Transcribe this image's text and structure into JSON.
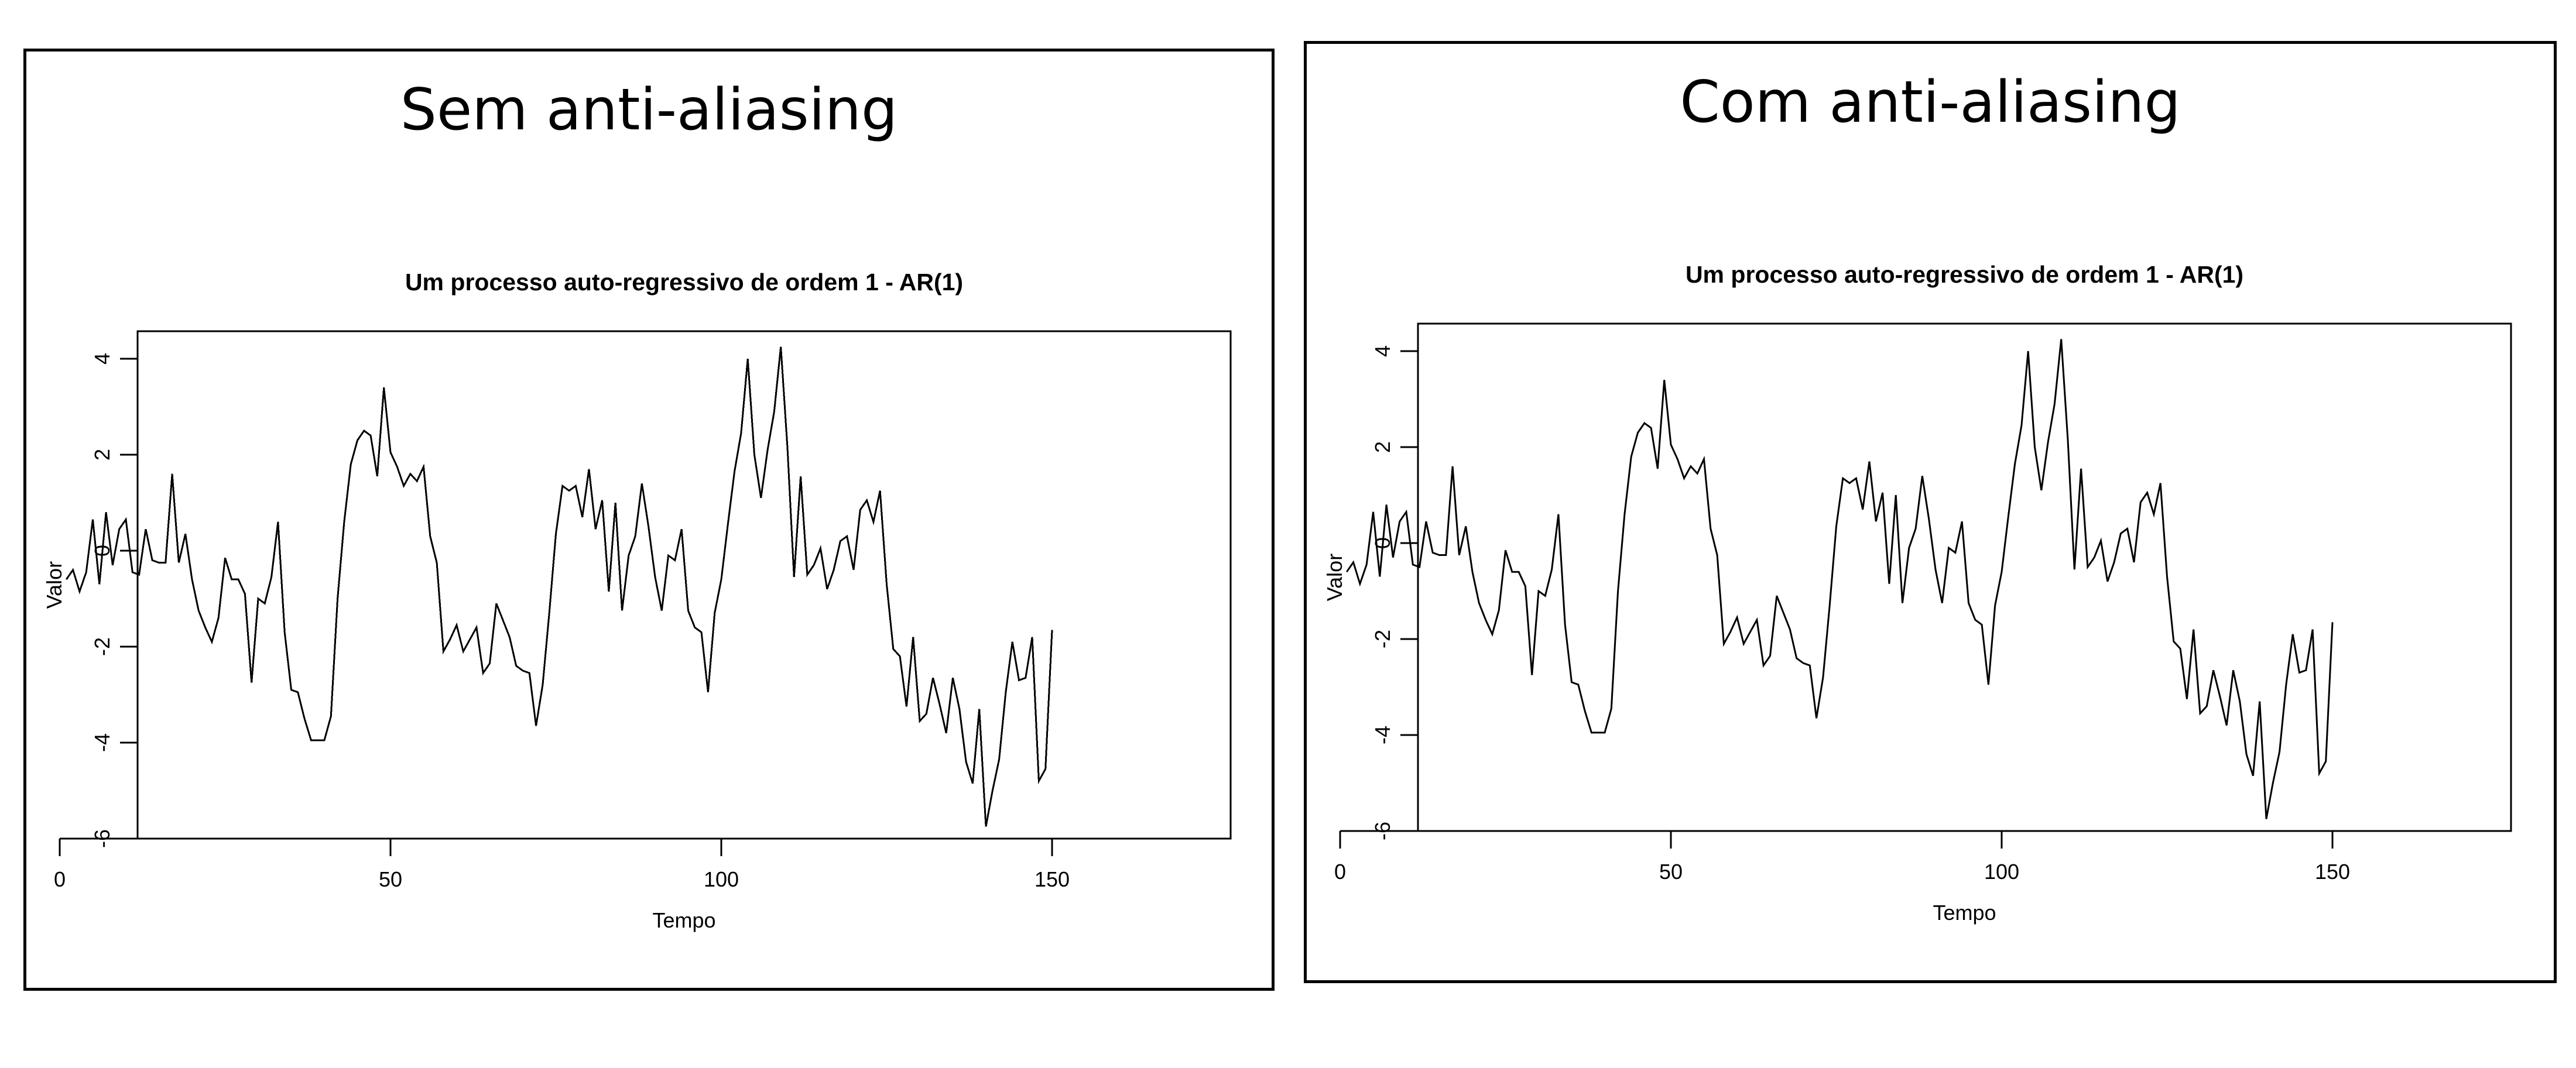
{
  "panels": [
    {
      "title": "Sem anti-aliasing"
    },
    {
      "title": "Com anti-aliasing"
    }
  ],
  "chart_data": [
    {
      "type": "line",
      "title": "Um processo auto-regressivo de ordem 1 - AR(1)",
      "xlabel": "Tempo",
      "ylabel": "Valor",
      "xlim": [
        0,
        150
      ],
      "ylim": [
        -6,
        4.6
      ],
      "xticks": [
        0,
        50,
        100,
        150
      ],
      "yticks": [
        -6,
        -4,
        -2,
        0,
        2,
        4
      ],
      "grid": false,
      "anti_aliasing": false,
      "series": [
        {
          "x": [
            1,
            2,
            3,
            4,
            5,
            6,
            7,
            8,
            9,
            10,
            11,
            12,
            13,
            14,
            15,
            16,
            17,
            18,
            19,
            20,
            21,
            22,
            23,
            24,
            25,
            26,
            27,
            28,
            29,
            30,
            31,
            32,
            33,
            34,
            35,
            36,
            37,
            38,
            39,
            40,
            41,
            42,
            43,
            44,
            45,
            46,
            47,
            48,
            49,
            50,
            51,
            52,
            53,
            54,
            55,
            56,
            57,
            58,
            59,
            60,
            61,
            62,
            63,
            64,
            65,
            66,
            67,
            68,
            69,
            70,
            71,
            72,
            73,
            74,
            75,
            76,
            77,
            78,
            79,
            80,
            81,
            82,
            83,
            84,
            85,
            86,
            87,
            88,
            89,
            90,
            91,
            92,
            93,
            94,
            95,
            96,
            97,
            98,
            99,
            100,
            101,
            102,
            103,
            104,
            105,
            106,
            107,
            108,
            109,
            110,
            111,
            112,
            113,
            114,
            115,
            116,
            117,
            118,
            119,
            120,
            121,
            122,
            123,
            124,
            125,
            126,
            127,
            128,
            129,
            130,
            131,
            132,
            133,
            134,
            135,
            136,
            137,
            138,
            139,
            140,
            141,
            142,
            143,
            144,
            145,
            146,
            147,
            148,
            149,
            150
          ],
          "y": [
            -0.6,
            -0.4,
            -0.85,
            -0.45,
            0.65,
            -0.7,
            0.8,
            -0.3,
            0.45,
            0.65,
            -0.45,
            -0.5,
            0.45,
            -0.2,
            -0.25,
            -0.25,
            1.6,
            -0.25,
            0.35,
            -0.6,
            -1.25,
            -1.6,
            -1.9,
            -1.4,
            -0.15,
            -0.6,
            -0.6,
            -0.9,
            -2.75,
            -1.0,
            -1.1,
            -0.55,
            0.6,
            -1.7,
            -2.9,
            -2.95,
            -3.5,
            -3.95,
            -3.95,
            -3.95,
            -3.45,
            -1.0,
            0.6,
            1.8,
            2.3,
            2.5,
            2.4,
            1.55,
            3.4,
            2.05,
            1.75,
            1.35,
            1.6,
            1.45,
            1.75,
            0.3,
            -0.25,
            -2.1,
            -1.85,
            -1.55,
            -2.1,
            -1.85,
            -1.6,
            -2.55,
            -2.35,
            -1.1,
            -1.45,
            -1.8,
            -2.4,
            -2.5,
            -2.55,
            -3.65,
            -2.8,
            -1.3,
            0.35,
            1.35,
            1.25,
            1.35,
            0.7,
            1.7,
            0.45,
            1.05,
            -0.85,
            1.0,
            -1.25,
            -0.1,
            0.3,
            1.4,
            0.5,
            -0.55,
            -1.25,
            -0.1,
            -0.2,
            0.45,
            -1.25,
            -1.6,
            -1.7,
            -2.95,
            -1.3,
            -0.6,
            0.55,
            1.65,
            2.45,
            4.0,
            2.0,
            1.1,
            2.1,
            2.9,
            4.25,
            2.15,
            -0.55,
            1.55,
            -0.5,
            -0.3,
            0.05,
            -0.8,
            -0.4,
            0.2,
            0.3,
            -0.4,
            0.85,
            1.05,
            0.6,
            1.25,
            -0.7,
            -2.05,
            -2.2,
            -3.25,
            -1.8,
            -3.55,
            -3.4,
            -2.65,
            -3.2,
            -3.8,
            -2.65,
            -3.3,
            -4.4,
            -4.85,
            -3.3,
            -5.75,
            -5.0,
            -4.35,
            -2.95,
            -1.9,
            -2.7,
            -2.65,
            -1.8,
            -4.8,
            -4.55,
            -1.65
          ]
        }
      ]
    },
    {
      "type": "line",
      "title": "Um processo auto-regressivo de ordem 1 - AR(1)",
      "xlabel": "Tempo",
      "ylabel": "Valor",
      "xlim": [
        0,
        150
      ],
      "ylim": [
        -6,
        4.6
      ],
      "xticks": [
        0,
        50,
        100,
        150
      ],
      "yticks": [
        -6,
        -4,
        -2,
        0,
        2,
        4
      ],
      "grid": false,
      "anti_aliasing": true,
      "series": [
        {
          "x": [
            1,
            2,
            3,
            4,
            5,
            6,
            7,
            8,
            9,
            10,
            11,
            12,
            13,
            14,
            15,
            16,
            17,
            18,
            19,
            20,
            21,
            22,
            23,
            24,
            25,
            26,
            27,
            28,
            29,
            30,
            31,
            32,
            33,
            34,
            35,
            36,
            37,
            38,
            39,
            40,
            41,
            42,
            43,
            44,
            45,
            46,
            47,
            48,
            49,
            50,
            51,
            52,
            53,
            54,
            55,
            56,
            57,
            58,
            59,
            60,
            61,
            62,
            63,
            64,
            65,
            66,
            67,
            68,
            69,
            70,
            71,
            72,
            73,
            74,
            75,
            76,
            77,
            78,
            79,
            80,
            81,
            82,
            83,
            84,
            85,
            86,
            87,
            88,
            89,
            90,
            91,
            92,
            93,
            94,
            95,
            96,
            97,
            98,
            99,
            100,
            101,
            102,
            103,
            104,
            105,
            106,
            107,
            108,
            109,
            110,
            111,
            112,
            113,
            114,
            115,
            116,
            117,
            118,
            119,
            120,
            121,
            122,
            123,
            124,
            125,
            126,
            127,
            128,
            129,
            130,
            131,
            132,
            133,
            134,
            135,
            136,
            137,
            138,
            139,
            140,
            141,
            142,
            143,
            144,
            145,
            146,
            147,
            148,
            149,
            150
          ],
          "y": [
            -0.6,
            -0.4,
            -0.85,
            -0.45,
            0.65,
            -0.7,
            0.8,
            -0.3,
            0.45,
            0.65,
            -0.45,
            -0.5,
            0.45,
            -0.2,
            -0.25,
            -0.25,
            1.6,
            -0.25,
            0.35,
            -0.6,
            -1.25,
            -1.6,
            -1.9,
            -1.4,
            -0.15,
            -0.6,
            -0.6,
            -0.9,
            -2.75,
            -1.0,
            -1.1,
            -0.55,
            0.6,
            -1.7,
            -2.9,
            -2.95,
            -3.5,
            -3.95,
            -3.95,
            -3.95,
            -3.45,
            -1.0,
            0.6,
            1.8,
            2.3,
            2.5,
            2.4,
            1.55,
            3.4,
            2.05,
            1.75,
            1.35,
            1.6,
            1.45,
            1.75,
            0.3,
            -0.25,
            -2.1,
            -1.85,
            -1.55,
            -2.1,
            -1.85,
            -1.6,
            -2.55,
            -2.35,
            -1.1,
            -1.45,
            -1.8,
            -2.4,
            -2.5,
            -2.55,
            -3.65,
            -2.8,
            -1.3,
            0.35,
            1.35,
            1.25,
            1.35,
            0.7,
            1.7,
            0.45,
            1.05,
            -0.85,
            1.0,
            -1.25,
            -0.1,
            0.3,
            1.4,
            0.5,
            -0.55,
            -1.25,
            -0.1,
            -0.2,
            0.45,
            -1.25,
            -1.6,
            -1.7,
            -2.95,
            -1.3,
            -0.6,
            0.55,
            1.65,
            2.45,
            4.0,
            2.0,
            1.1,
            2.1,
            2.9,
            4.25,
            2.15,
            -0.55,
            1.55,
            -0.5,
            -0.3,
            0.05,
            -0.8,
            -0.4,
            0.2,
            0.3,
            -0.4,
            0.85,
            1.05,
            0.6,
            1.25,
            -0.7,
            -2.05,
            -2.2,
            -3.25,
            -1.8,
            -3.55,
            -3.4,
            -2.65,
            -3.2,
            -3.8,
            -2.65,
            -3.3,
            -4.4,
            -4.85,
            -3.3,
            -5.75,
            -5.0,
            -4.35,
            -2.95,
            -1.9,
            -2.7,
            -2.65,
            -1.8,
            -4.8,
            -4.55,
            -1.65
          ]
        }
      ]
    }
  ]
}
